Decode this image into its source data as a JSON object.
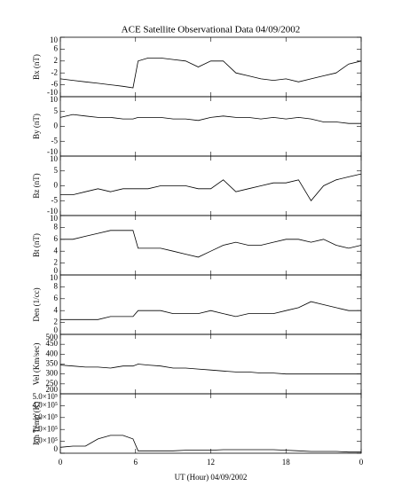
{
  "chart_data": [
    {
      "type": "line",
      "title": "ACE Satellite Observational Data   04/09/2002",
      "ylabel": "Bx (nT)",
      "color": "#000000",
      "x": [
        0,
        1,
        2,
        3,
        4,
        5,
        5.8,
        6.2,
        7,
        8,
        9,
        10,
        11,
        12,
        13,
        14,
        15,
        16,
        17,
        18,
        19,
        20,
        21,
        22,
        23,
        24
      ],
      "values": [
        -4,
        -4.5,
        -5,
        -5.5,
        -6,
        -6.5,
        -7,
        2,
        3,
        3,
        2.5,
        2,
        0,
        2,
        2,
        -2,
        -3,
        -4,
        -4.5,
        -4,
        -5,
        -4,
        -3,
        -2,
        1,
        2
      ],
      "xlim": [
        0,
        24
      ],
      "xticks": [
        0,
        6,
        12,
        18,
        24
      ],
      "ylim": [
        -10,
        10
      ],
      "yticks": [
        10,
        6,
        2,
        -2,
        -6,
        -10
      ]
    },
    {
      "type": "line",
      "ylabel": "By (nT)",
      "color": "#000000",
      "x": [
        0,
        1,
        2,
        3,
        4,
        5,
        5.8,
        6.2,
        7,
        8,
        9,
        10,
        11,
        12,
        13,
        14,
        15,
        16,
        17,
        18,
        19,
        20,
        21,
        22,
        23,
        24
      ],
      "values": [
        3,
        4,
        3.5,
        3,
        3,
        2.5,
        2.5,
        3,
        3,
        3,
        2.5,
        2.5,
        2,
        3,
        3.5,
        3,
        3,
        2.5,
        3,
        2.5,
        3,
        2.5,
        1.5,
        1.5,
        1,
        1
      ],
      "xlim": [
        0,
        24
      ],
      "xticks": [
        0,
        6,
        12,
        18,
        24
      ],
      "ylim": [
        -10,
        10
      ],
      "yticks": [
        10,
        5,
        0,
        -5,
        -10
      ]
    },
    {
      "type": "line",
      "ylabel": "Bz (nT)",
      "color": "#000000",
      "x": [
        0,
        1,
        2,
        3,
        4,
        5,
        5.8,
        6.2,
        7,
        8,
        9,
        10,
        11,
        12,
        13,
        14,
        15,
        16,
        17,
        18,
        19,
        20,
        21,
        22,
        23,
        24
      ],
      "values": [
        -3,
        -3,
        -2,
        -1,
        -2,
        -1,
        -1,
        -1,
        -1,
        0,
        0,
        0,
        -1,
        -1,
        2,
        -2,
        -1,
        0,
        1,
        1,
        2,
        -5,
        0,
        2,
        3,
        4
      ],
      "xlim": [
        0,
        24
      ],
      "xticks": [
        0,
        6,
        12,
        18,
        24
      ],
      "ylim": [
        -10,
        10
      ],
      "yticks": [
        10,
        5,
        0,
        -5,
        -10
      ]
    },
    {
      "type": "line",
      "ylabel": "Bt (nT)",
      "color": "#000000",
      "x": [
        0,
        1,
        2,
        3,
        4,
        5,
        5.8,
        6.2,
        7,
        8,
        9,
        10,
        11,
        12,
        13,
        14,
        15,
        16,
        17,
        18,
        19,
        20,
        21,
        22,
        23,
        24
      ],
      "values": [
        6,
        6,
        6.5,
        7,
        7.5,
        7.5,
        7.5,
        4.5,
        4.5,
        4.5,
        4,
        3.5,
        3,
        4,
        5,
        5.5,
        5,
        5,
        5.5,
        6,
        6,
        5.5,
        6,
        5,
        4.5,
        5
      ],
      "xlim": [
        0,
        24
      ],
      "xticks": [
        0,
        6,
        12,
        18,
        24
      ],
      "ylim": [
        0,
        10
      ],
      "yticks": [
        10,
        8,
        6,
        4,
        2,
        0
      ]
    },
    {
      "type": "line",
      "ylabel": "Den (1/cc)",
      "color": "#000000",
      "x": [
        0,
        1,
        2,
        3,
        4,
        5,
        5.8,
        6.2,
        7,
        8,
        9,
        10,
        11,
        12,
        13,
        14,
        15,
        16,
        17,
        18,
        19,
        20,
        21,
        22,
        23,
        24
      ],
      "values": [
        2.5,
        2.5,
        2.5,
        2.5,
        3,
        3,
        3,
        4,
        4,
        4,
        3.5,
        3.5,
        3.5,
        4,
        3.5,
        3,
        3.5,
        3.5,
        3.5,
        4,
        4.5,
        5.5,
        5,
        4.5,
        4,
        4
      ],
      "xlim": [
        0,
        24
      ],
      "xticks": [
        0,
        6,
        12,
        18,
        24
      ],
      "ylim": [
        0,
        10
      ],
      "yticks": [
        10,
        8,
        6,
        4,
        2,
        0
      ]
    },
    {
      "type": "line",
      "ylabel": "Vel (Km/sec)",
      "color": "#000000",
      "x": [
        0,
        1,
        2,
        3,
        4,
        5,
        5.8,
        6.2,
        7,
        8,
        9,
        10,
        11,
        12,
        13,
        14,
        15,
        16,
        17,
        18,
        19,
        20,
        21,
        22,
        23,
        24
      ],
      "values": [
        345,
        340,
        335,
        335,
        330,
        340,
        340,
        350,
        345,
        340,
        330,
        330,
        325,
        320,
        315,
        310,
        310,
        305,
        305,
        300,
        300,
        300,
        300,
        300,
        300,
        300
      ],
      "xlim": [
        0,
        24
      ],
      "xticks": [
        0,
        6,
        12,
        18,
        24
      ],
      "ylim": [
        200,
        500
      ],
      "yticks": [
        500,
        450,
        400,
        350,
        300,
        250,
        200
      ]
    },
    {
      "type": "line",
      "ylabel": "Ion Temp (K)",
      "xlabel": "UT (Hour)   04/09/2002",
      "color": "#000000",
      "x": [
        0,
        1,
        2,
        3,
        4,
        5,
        5.8,
        6.2,
        7,
        8,
        9,
        10,
        11,
        12,
        13,
        14,
        15,
        16,
        17,
        18,
        19,
        20,
        21,
        22,
        23,
        24
      ],
      "values": [
        50000,
        60000,
        60000,
        120000,
        150000,
        150000,
        120000,
        20000,
        20000,
        20000,
        20000,
        25000,
        25000,
        25000,
        30000,
        30000,
        30000,
        30000,
        30000,
        25000,
        20000,
        15000,
        15000,
        15000,
        10000,
        10000
      ],
      "xlim": [
        0,
        24
      ],
      "xticks": [
        0,
        6,
        12,
        18,
        {
          "value": 24,
          "label": "0"
        }
      ],
      "ylim": [
        0,
        500000
      ],
      "yticks": [
        {
          "value": 500000,
          "label": "5.0×10⁵"
        },
        {
          "value": 400000,
          "label": "4.0×10⁵"
        },
        {
          "value": 300000,
          "label": "3.0×10⁵"
        },
        {
          "value": 200000,
          "label": "2.0×10⁵"
        },
        {
          "value": 100000,
          "label": "1.0×10⁵"
        },
        0
      ]
    }
  ]
}
